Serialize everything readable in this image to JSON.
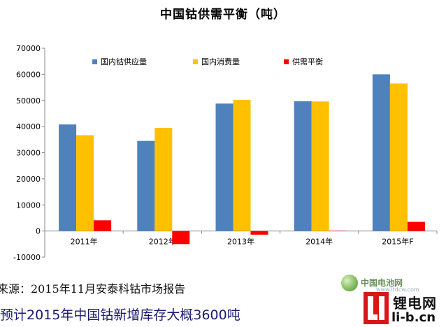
{
  "chart_data": {
    "type": "bar",
    "title": "中国钴供需平衡（吨）",
    "categories": [
      "2011年",
      "2012年",
      "2013年",
      "2014年",
      "2015年F"
    ],
    "series": [
      {
        "name": "国内钴供应量",
        "color": "#4f81bd",
        "values": [
          40800,
          34500,
          48800,
          49700,
          60000
        ]
      },
      {
        "name": "国内消费量",
        "color": "#ffc000",
        "values": [
          36700,
          39500,
          50200,
          49600,
          56500
        ]
      },
      {
        "name": "供需平衡",
        "color": "#ff0000",
        "values": [
          4100,
          -5000,
          -1400,
          100,
          3500
        ]
      }
    ],
    "ylim": [
      -10000,
      70000
    ],
    "yticks": [
      -10000,
      0,
      10000,
      20000,
      30000,
      40000,
      50000,
      60000,
      70000
    ],
    "grid": false,
    "legend": "top"
  },
  "source_text": "来源：2015年11月安泰科钴市场报告",
  "note_text": "预计2015年中国钴新增库存大概3600吨",
  "watermark": {
    "site_name": "中国电池网",
    "site_url": "www.itdcw.com",
    "logo_cn": "锂电网",
    "logo_en": "li-b.cn"
  }
}
